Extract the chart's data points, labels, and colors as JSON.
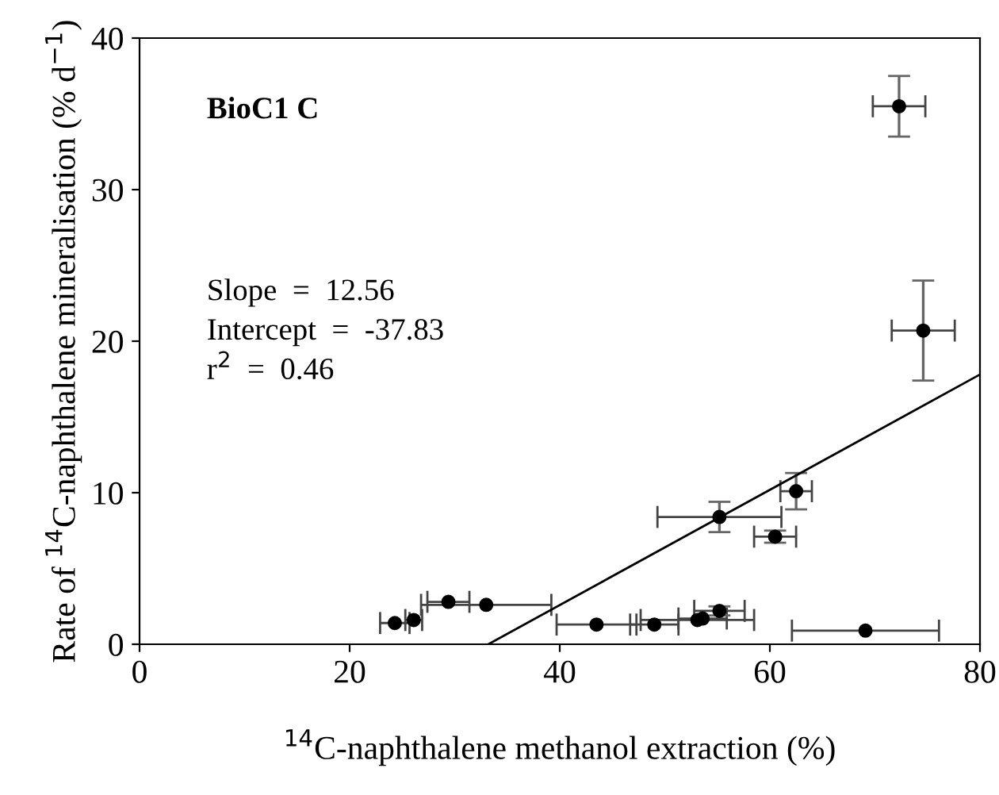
{
  "chart_data": {
    "type": "scatter",
    "xlabel": "$^{14}$C-naphthalene methanol extraction (%)",
    "ylabel": "Rate of $^{14}$C-naphthalene mineralisation (% d$^{−1}$)",
    "annotations": [
      "BioC1 C",
      "Slope  =  12.56",
      "Intercept  =  -37.83",
      "r$^{2}$  =  0.46"
    ],
    "xlim": [
      0,
      80
    ],
    "ylim": [
      0,
      40
    ],
    "xticks": [
      0,
      20,
      40,
      60,
      80
    ],
    "yticks": [
      0,
      10,
      20,
      30,
      40
    ],
    "grid": false,
    "legend": false,
    "series": [
      {
        "marker": "circle",
        "color": "#000000",
        "x": [
          24.3,
          26.1,
          29.4,
          33.0,
          43.5,
          49.0,
          53.1,
          53.6,
          55.2,
          69.1,
          55.2,
          60.5,
          62.5,
          72.3,
          74.6
        ],
        "values": [
          1.4,
          1.6,
          2.8,
          2.6,
          1.3,
          1.3,
          1.6,
          1.7,
          2.2,
          0.9,
          8.4,
          7.1,
          10.1,
          35.5,
          20.7
        ],
        "errors": [
          null,
          null,
          null,
          null,
          null,
          null,
          null,
          null,
          0.3,
          null,
          1.0,
          0.4,
          1.2,
          2.0,
          3.3
        ],
        "xerrors": [
          1.4,
          0.8,
          2.0,
          6.2,
          3.8,
          2.3,
          5.4,
          2.3,
          2.4,
          7.0,
          5.9,
          2.0,
          1.5,
          2.5,
          3.0
        ]
      },
      {
        "type": "line",
        "color": "#000000",
        "x": [
          33.2,
          80
        ],
        "values": [
          0,
          17.8
        ]
      }
    ]
  }
}
